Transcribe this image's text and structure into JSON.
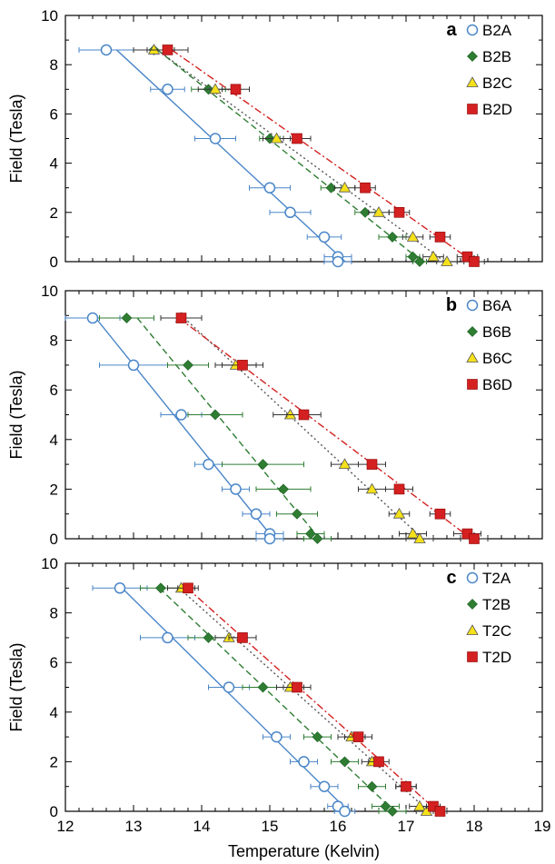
{
  "colors": {
    "A": "#4a86c8",
    "B": "#2e7d32",
    "C": "#f5e11a",
    "D": "#d42020",
    "errorbar": "#333333"
  },
  "chart_data": [
    {
      "type": "scatter",
      "panel": "a",
      "xlim": [
        12,
        19
      ],
      "ylim": [
        0,
        10
      ],
      "xticks": [
        12,
        13,
        14,
        15,
        16,
        17,
        18,
        19
      ],
      "yticks": [
        0,
        2,
        4,
        6,
        8,
        10
      ],
      "ylabel": "Field (Tesla)",
      "xlabel": "",
      "legend_position": "top-right",
      "series": [
        {
          "name": "B2A",
          "key": "A",
          "line": "solid",
          "x": [
            12.6,
            13.5,
            14.2,
            15.0,
            15.3,
            15.8,
            16.0,
            16.0
          ],
          "y": [
            8.6,
            7.0,
            5.0,
            3.0,
            2.0,
            1.0,
            0.2,
            0.0
          ],
          "xerr": [
            0.4,
            0.25,
            0.3,
            0.3,
            0.3,
            0.25,
            0.2,
            0.2
          ]
        },
        {
          "name": "B2B",
          "key": "B",
          "line": "dash",
          "x": [
            13.3,
            14.1,
            15.0,
            15.9,
            16.4,
            16.8,
            17.1,
            17.2
          ],
          "y": [
            8.6,
            7.0,
            5.0,
            3.0,
            2.0,
            1.0,
            0.2,
            0.0
          ],
          "xerr": [
            0.3,
            0.25,
            0.15,
            0.15,
            0.15,
            0.2,
            0.1,
            0.1
          ]
        },
        {
          "name": "B2C",
          "key": "C",
          "line": "dot",
          "x": [
            13.3,
            14.2,
            15.1,
            16.1,
            16.6,
            17.1,
            17.4,
            17.6
          ],
          "y": [
            8.6,
            7.0,
            5.0,
            3.0,
            2.0,
            1.0,
            0.2,
            0.0
          ],
          "xerr": [
            0.3,
            0.25,
            0.2,
            0.15,
            0.15,
            0.15,
            0.15,
            0.15
          ]
        },
        {
          "name": "B2D",
          "key": "D",
          "line": "dashdot",
          "x": [
            13.5,
            14.5,
            15.4,
            16.4,
            16.9,
            17.5,
            17.9,
            18.0
          ],
          "y": [
            8.6,
            7.0,
            5.0,
            3.0,
            2.0,
            1.0,
            0.2,
            0.0
          ],
          "xerr": [
            0.3,
            0.2,
            0.2,
            0.15,
            0.15,
            0.15,
            0.15,
            0.15
          ]
        }
      ]
    },
    {
      "type": "scatter",
      "panel": "b",
      "xlim": [
        12,
        19
      ],
      "ylim": [
        0,
        10
      ],
      "xticks": [
        12,
        13,
        14,
        15,
        16,
        17,
        18,
        19
      ],
      "yticks": [
        0,
        2,
        4,
        6,
        8,
        10
      ],
      "ylabel": "Field (Tesla)",
      "xlabel": "",
      "legend_position": "top-right",
      "series": [
        {
          "name": "B6A",
          "key": "A",
          "line": "solid",
          "x": [
            12.4,
            13.0,
            13.7,
            14.1,
            14.5,
            14.8,
            15.0,
            15.0
          ],
          "y": [
            8.9,
            7.0,
            5.0,
            3.0,
            2.0,
            1.0,
            0.2,
            0.0
          ],
          "xerr": [
            0.4,
            0.5,
            0.3,
            0.2,
            0.2,
            0.2,
            0.2,
            0.2
          ]
        },
        {
          "name": "B6B",
          "key": "B",
          "line": "dash",
          "x": [
            12.9,
            13.8,
            14.2,
            14.9,
            15.2,
            15.4,
            15.6,
            15.7
          ],
          "y": [
            8.9,
            7.0,
            5.0,
            3.0,
            2.0,
            1.0,
            0.2,
            0.0
          ],
          "xerr": [
            0.4,
            0.3,
            0.4,
            0.6,
            0.4,
            0.3,
            0.2,
            0.2
          ]
        },
        {
          "name": "B6C",
          "key": "C",
          "line": "dot",
          "x": [
            13.7,
            14.5,
            15.3,
            16.1,
            16.5,
            16.9,
            17.1,
            17.2
          ],
          "y": [
            8.9,
            7.0,
            5.0,
            3.0,
            2.0,
            1.0,
            0.2,
            0.0
          ],
          "xerr": [
            0.3,
            0.3,
            0.25,
            0.2,
            0.2,
            0.15,
            0.2,
            0.2
          ]
        },
        {
          "name": "B6D",
          "key": "D",
          "line": "dashdot",
          "x": [
            13.7,
            14.6,
            15.5,
            16.5,
            16.9,
            17.5,
            17.9,
            18.0
          ],
          "y": [
            8.9,
            7.0,
            5.0,
            3.0,
            2.0,
            1.0,
            0.2,
            0.0
          ],
          "xerr": [
            0.3,
            0.3,
            0.25,
            0.2,
            0.2,
            0.15,
            0.2,
            0.2
          ]
        }
      ]
    },
    {
      "type": "scatter",
      "panel": "c",
      "xlim": [
        12,
        19
      ],
      "ylim": [
        0,
        10
      ],
      "xticks": [
        12,
        13,
        14,
        15,
        16,
        17,
        18,
        19
      ],
      "yticks": [
        0,
        2,
        4,
        6,
        8,
        10
      ],
      "ylabel": "Field (Tesla)",
      "xlabel": "Temperature (Kelvin)",
      "legend_position": "top-right",
      "series": [
        {
          "name": "T2A",
          "key": "A",
          "line": "solid",
          "x": [
            12.8,
            13.5,
            14.4,
            15.1,
            15.5,
            15.8,
            16.0,
            16.1
          ],
          "y": [
            9.0,
            7.0,
            5.0,
            3.0,
            2.0,
            1.0,
            0.2,
            0.0
          ],
          "xerr": [
            0.4,
            0.4,
            0.3,
            0.2,
            0.2,
            0.2,
            0.15,
            0.15
          ]
        },
        {
          "name": "T2B",
          "key": "B",
          "line": "dash",
          "x": [
            13.4,
            14.1,
            14.9,
            15.7,
            16.1,
            16.5,
            16.7,
            16.8
          ],
          "y": [
            9.0,
            7.0,
            5.0,
            3.0,
            2.0,
            1.0,
            0.2,
            0.0
          ],
          "xerr": [
            0.3,
            0.3,
            0.3,
            0.2,
            0.2,
            0.2,
            0.2,
            0.2
          ]
        },
        {
          "name": "T2C",
          "key": "C",
          "line": "dot",
          "x": [
            13.7,
            14.4,
            15.3,
            16.2,
            16.5,
            17.0,
            17.2,
            17.3
          ],
          "y": [
            9.0,
            7.0,
            5.0,
            3.0,
            2.0,
            1.0,
            0.2,
            0.0
          ],
          "xerr": [
            0.2,
            0.2,
            0.2,
            0.2,
            0.15,
            0.15,
            0.15,
            0.15
          ]
        },
        {
          "name": "T2D",
          "key": "D",
          "line": "dashdot",
          "x": [
            13.8,
            14.6,
            15.4,
            16.3,
            16.6,
            17.0,
            17.4,
            17.5
          ],
          "y": [
            9.0,
            7.0,
            5.0,
            3.0,
            2.0,
            1.0,
            0.2,
            0.0
          ],
          "xerr": [
            0.15,
            0.2,
            0.2,
            0.2,
            0.15,
            0.15,
            0.1,
            0.1
          ]
        }
      ]
    }
  ]
}
